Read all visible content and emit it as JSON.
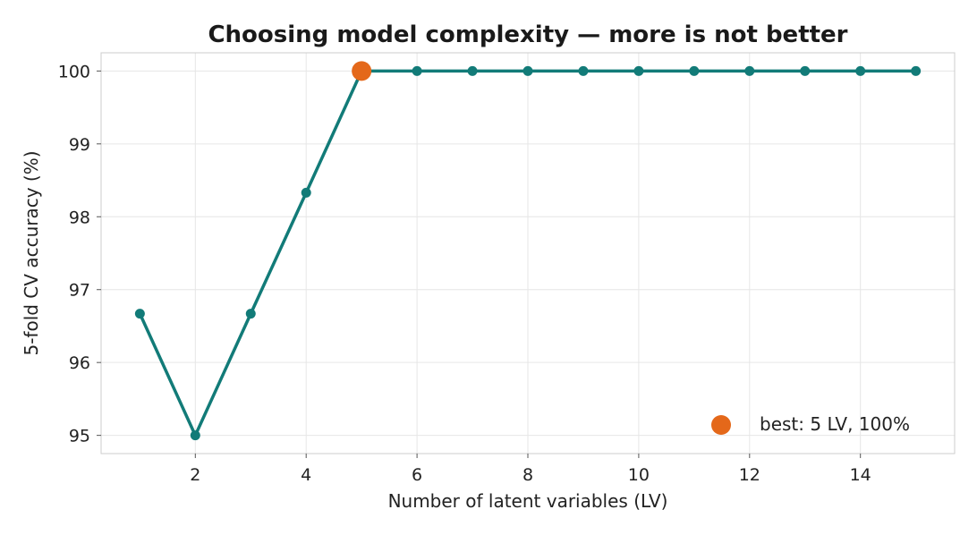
{
  "chart_data": {
    "type": "line",
    "title": "Choosing model complexity — more is not better",
    "xlabel": "Number of latent variables (LV)",
    "ylabel": "5-fold CV accuracy (%)",
    "x": [
      1,
      2,
      3,
      4,
      5,
      6,
      7,
      8,
      9,
      10,
      11,
      12,
      13,
      14,
      15
    ],
    "series": [
      {
        "values": [
          96.67,
          95.0,
          96.67,
          98.33,
          100,
          100,
          100,
          100,
          100,
          100,
          100,
          100,
          100,
          100,
          100
        ],
        "color": "#127b78"
      }
    ],
    "highlight": {
      "x": 5,
      "y": 100,
      "color": "#e4681a",
      "label": "best: 5 LV, 100%"
    },
    "xlim": [
      0.3,
      15.7
    ],
    "ylim": [
      94.75,
      100.25
    ],
    "xticks": [
      2,
      4,
      6,
      8,
      10,
      12,
      14
    ],
    "yticks": [
      95,
      96,
      97,
      98,
      99,
      100
    ],
    "grid": true,
    "legend_position": "bottom-right"
  }
}
